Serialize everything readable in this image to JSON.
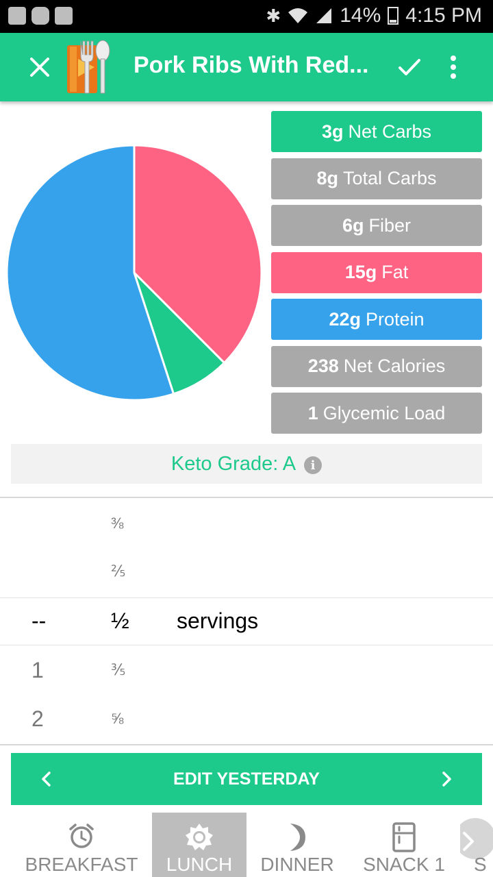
{
  "status_bar": {
    "battery": "14%",
    "time": "4:15 PM"
  },
  "app_bar": {
    "title": "Pork Ribs With Red..."
  },
  "chart_data": {
    "type": "pie",
    "slices": [
      {
        "label": "Fat",
        "value": 15,
        "color": "#ff6384"
      },
      {
        "label": "Net Carbs",
        "value": 3,
        "color": "#1dc98b"
      },
      {
        "label": "Protein",
        "value": 22,
        "color": "#36a2eb"
      }
    ]
  },
  "macros": [
    {
      "value": "3g",
      "label": "Net Carbs",
      "color": "#1dc98b"
    },
    {
      "value": "8g",
      "label": "Total Carbs",
      "color": "#a9a9a9"
    },
    {
      "value": "6g",
      "label": "Fiber",
      "color": "#a9a9a9"
    },
    {
      "value": "15g",
      "label": "Fat",
      "color": "#ff6384"
    },
    {
      "value": "22g",
      "label": "Protein",
      "color": "#36a2eb"
    },
    {
      "value": "238",
      "label": "Net Calories",
      "color": "#a9a9a9"
    },
    {
      "value": "1",
      "label": "Glycemic Load",
      "color": "#a9a9a9"
    }
  ],
  "keto_grade": {
    "label": "Keto Grade: A",
    "info_icon": "i"
  },
  "picker": {
    "fractions": [
      "⅜",
      "⅖",
      "½",
      "⅗",
      "⅝"
    ],
    "wholes": [
      "--",
      "1",
      "2"
    ],
    "unit": "servings"
  },
  "edit_bar": {
    "label": "EDIT YESTERDAY"
  },
  "tabs": [
    {
      "label": "BREAKFAST",
      "icon": "alarm-clock-icon",
      "active": false
    },
    {
      "label": "LUNCH",
      "icon": "sun-icon",
      "active": true
    },
    {
      "label": "DINNER",
      "icon": "moon-icon",
      "active": false
    },
    {
      "label": "SNACK 1",
      "icon": "fridge-icon",
      "active": false
    },
    {
      "label": "S",
      "icon": "chevron-right-icon",
      "active": false
    }
  ]
}
